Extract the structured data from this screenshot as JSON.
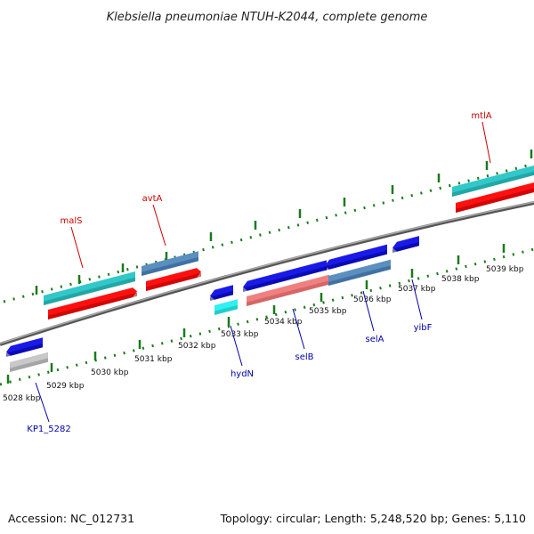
{
  "title": "Klebsiella pneumoniae NTUH-K2044, complete genome",
  "footer": {
    "accession": "Accession: NC_012731",
    "summary": "Topology: circular; Length: 5,248,520 bp; Genes: 5,110"
  },
  "colors": {
    "upper_label": "#cc0000",
    "lower_label": "#0000aa",
    "tick": "#1a7a1a",
    "backbone": "#888888"
  },
  "kbp_ticks": [
    {
      "label": "5028 kbp"
    },
    {
      "label": "5029 kbp"
    },
    {
      "label": "5030 kbp"
    },
    {
      "label": "5031 kbp"
    },
    {
      "label": "5032 kbp"
    },
    {
      "label": "5033 kbp"
    },
    {
      "label": "5034 kbp"
    },
    {
      "label": "5035 kbp"
    },
    {
      "label": "5036 kbp"
    },
    {
      "label": "5037 kbp"
    },
    {
      "label": "5038 kbp"
    },
    {
      "label": "5039 kbp"
    }
  ],
  "gene_labels_upper": [
    {
      "name": "malS"
    },
    {
      "name": "avtA"
    },
    {
      "name": "mtlA"
    }
  ],
  "gene_labels_lower": [
    {
      "name": "KP1_5282"
    },
    {
      "name": "hydN"
    },
    {
      "name": "selB"
    },
    {
      "name": "selA"
    },
    {
      "name": "yibF"
    }
  ]
}
